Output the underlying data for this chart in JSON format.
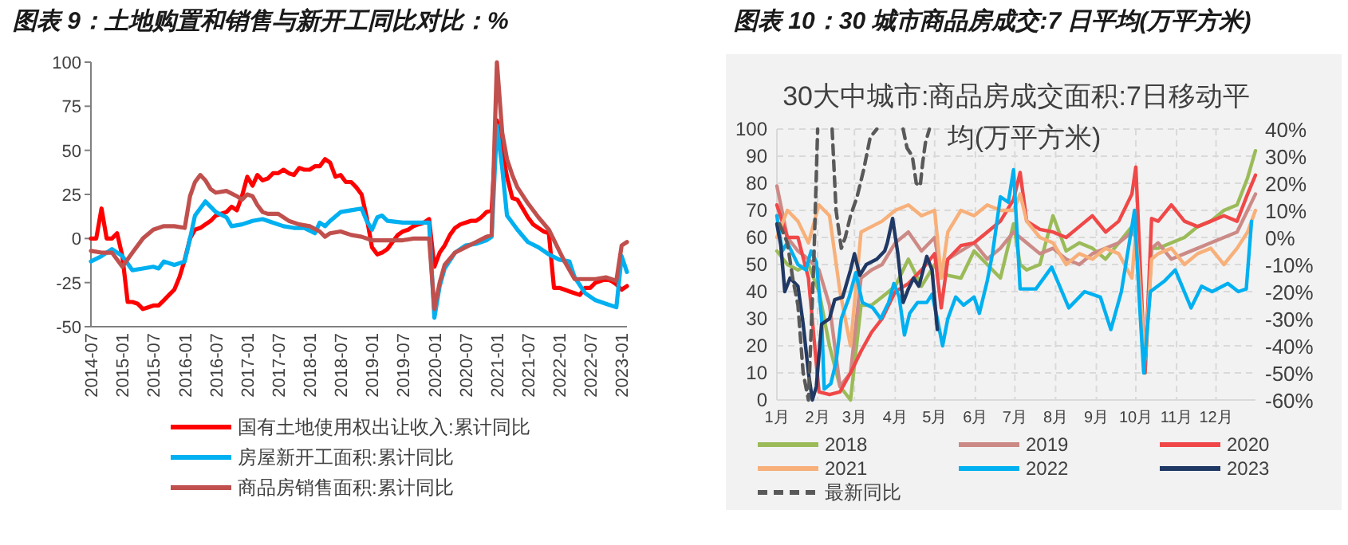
{
  "chart_data": [
    {
      "type": "line",
      "title": "图表 9：土地购置和销售与新开工同比对比：%",
      "xlim": [
        "2014-07",
        "2023-02"
      ],
      "xticks": [
        {
          "value": "2014-07",
          "label": "2014-07"
        },
        {
          "value": "2015-01",
          "label": "2015-01"
        },
        {
          "value": "2015-07",
          "label": "2015-07"
        },
        {
          "value": "2016-01",
          "label": "2016-01"
        },
        {
          "value": "2016-07",
          "label": "2016-07"
        },
        {
          "value": "2017-01",
          "label": "2017-01"
        },
        {
          "value": "2017-07",
          "label": "2017-07"
        },
        {
          "value": "2018-01",
          "label": "2018-01"
        },
        {
          "value": "2018-07",
          "label": "2018-07"
        },
        {
          "value": "2019-01",
          "label": "2019-01"
        },
        {
          "value": "2019-07",
          "label": "2019-07"
        },
        {
          "value": "2020-01",
          "label": "2020-01"
        },
        {
          "value": "2020-07",
          "label": "2020-07"
        },
        {
          "value": "2021-01",
          "label": "2021-01"
        },
        {
          "value": "2021-07",
          "label": "2021-07"
        },
        {
          "value": "2022-01",
          "label": "2022-01"
        },
        {
          "value": "2022-07",
          "label": "2022-07"
        },
        {
          "value": "2023-01",
          "label": "2023-01"
        }
      ],
      "ylim": [
        -50,
        100
      ],
      "yticks": [
        -50,
        -25,
        0,
        25,
        50,
        75,
        100
      ],
      "grid": false,
      "legend": "bottom",
      "series": [
        {
          "name": "国有土地使用权出让收入:累计同比",
          "color": "#ff0000",
          "x": [
            "2014-07",
            "2014-08",
            "2014-09",
            "2014-10",
            "2014-11",
            "2014-12",
            "2015-01",
            "2015-02",
            "2015-03",
            "2015-04",
            "2015-05",
            "2015-06",
            "2015-07",
            "2015-08",
            "2015-09",
            "2015-10",
            "2015-11",
            "2015-12",
            "2016-01",
            "2016-02",
            "2016-03",
            "2016-04",
            "2016-05",
            "2016-06",
            "2016-07",
            "2016-08",
            "2016-09",
            "2016-10",
            "2016-11",
            "2016-12",
            "2017-01",
            "2017-02",
            "2017-03",
            "2017-04",
            "2017-05",
            "2017-06",
            "2017-07",
            "2017-08",
            "2017-09",
            "2017-10",
            "2017-11",
            "2017-12",
            "2018-01",
            "2018-02",
            "2018-03",
            "2018-04",
            "2018-05",
            "2018-06",
            "2018-07",
            "2018-08",
            "2018-09",
            "2018-10",
            "2018-11",
            "2018-12",
            "2019-01",
            "2019-02",
            "2019-03",
            "2019-04",
            "2019-05",
            "2019-06",
            "2019-07",
            "2019-08",
            "2019-09",
            "2019-10",
            "2019-11",
            "2019-12",
            "2020-01",
            "2020-02",
            "2020-03",
            "2020-04",
            "2020-05",
            "2020-06",
            "2020-07",
            "2020-08",
            "2020-09",
            "2020-10",
            "2020-11",
            "2020-12",
            "2021-01",
            "2021-02",
            "2021-03",
            "2021-04",
            "2021-05",
            "2021-06",
            "2021-07",
            "2021-08",
            "2021-09",
            "2021-10",
            "2021-11",
            "2021-12",
            "2022-01",
            "2022-02",
            "2022-03",
            "2022-04",
            "2022-05",
            "2022-06",
            "2022-07",
            "2022-08",
            "2022-09",
            "2022-10",
            "2022-11",
            "2022-12",
            "2023-01",
            "2023-02"
          ],
          "values": [
            0,
            0,
            17,
            0,
            0,
            3,
            -10,
            -36,
            -36,
            -37,
            -40,
            -39,
            -38,
            -38,
            -35,
            -32,
            -29,
            -22,
            -12,
            0,
            5,
            6,
            8,
            10,
            13,
            14,
            15,
            18,
            16,
            24,
            35,
            30,
            36,
            33,
            34,
            37,
            37,
            39,
            37,
            36,
            40,
            39,
            39,
            41,
            41,
            45,
            43,
            35,
            36,
            32,
            32,
            29,
            25,
            12,
            -5,
            -9,
            -8,
            -6,
            -2,
            2,
            4,
            5,
            7,
            8,
            9,
            11,
            -16,
            -8,
            -4,
            2,
            6,
            8,
            9,
            10,
            10,
            12,
            15,
            16,
            67,
            50,
            35,
            23,
            22,
            17,
            12,
            8,
            6,
            4,
            3,
            -28,
            -28,
            -29,
            -30,
            -31,
            -32,
            -28,
            -28,
            -25,
            -24,
            -23,
            -24,
            -26,
            -29,
            -27
          ]
        },
        {
          "name": "房屋新开工面积:累计同比",
          "color": "#00b0f0",
          "x": [
            "2014-07",
            "2014-09",
            "2014-11",
            "2015-01",
            "2015-03",
            "2015-05",
            "2015-07",
            "2015-08",
            "2015-09",
            "2015-11",
            "2016-01",
            "2016-02",
            "2016-03",
            "2016-05",
            "2016-07",
            "2016-09",
            "2016-10",
            "2016-12",
            "2017-02",
            "2017-04",
            "2017-06",
            "2017-08",
            "2017-10",
            "2017-12",
            "2018-02",
            "2018-03",
            "2018-04",
            "2018-05",
            "2018-07",
            "2018-09",
            "2018-11",
            "2018-12",
            "2019-01",
            "2019-02",
            "2019-03",
            "2019-04",
            "2019-07",
            "2019-09",
            "2019-11",
            "2019-12",
            "2020-01",
            "2020-02",
            "2020-03",
            "2020-05",
            "2020-07",
            "2020-09",
            "2020-11",
            "2020-12",
            "2021-01",
            "2021-02",
            "2021-03",
            "2021-05",
            "2021-07",
            "2021-09",
            "2021-11",
            "2022-01",
            "2022-03",
            "2022-04",
            "2022-06",
            "2022-08",
            "2022-10",
            "2022-12",
            "2023-01",
            "2023-02"
          ],
          "values": [
            -13,
            -10,
            -6,
            -10,
            -18,
            -17,
            -16,
            -17,
            -13,
            -15,
            -13,
            0,
            13,
            21,
            15,
            12,
            7,
            8,
            10,
            11,
            9,
            7,
            6,
            6,
            3,
            9,
            7,
            10,
            15,
            16,
            17,
            10,
            5,
            12,
            13,
            10,
            9,
            9,
            9,
            9,
            -45,
            -27,
            -17,
            -8,
            -4,
            -3,
            -1,
            1,
            64,
            40,
            13,
            5,
            -2,
            -5,
            -9,
            -12,
            -13,
            -22,
            -31,
            -35,
            -37,
            -39,
            -10,
            -19
          ]
        },
        {
          "name": "商品房销售面积:累计同比",
          "color": "#c0504d",
          "x": [
            "2014-07",
            "2014-09",
            "2014-11",
            "2015-01",
            "2015-03",
            "2015-05",
            "2015-07",
            "2015-09",
            "2015-11",
            "2016-01",
            "2016-02",
            "2016-03",
            "2016-04",
            "2016-05",
            "2016-06",
            "2016-07",
            "2016-09",
            "2016-11",
            "2016-12",
            "2017-01",
            "2017-02",
            "2017-03",
            "2017-04",
            "2017-05",
            "2017-07",
            "2017-09",
            "2017-11",
            "2018-01",
            "2018-03",
            "2018-04",
            "2018-05",
            "2018-07",
            "2018-09",
            "2018-11",
            "2019-01",
            "2019-03",
            "2019-05",
            "2019-07",
            "2019-09",
            "2019-12",
            "2020-01",
            "2020-02",
            "2020-03",
            "2020-05",
            "2020-07",
            "2020-09",
            "2020-11",
            "2020-12",
            "2021-01",
            "2021-02",
            "2021-03",
            "2021-04",
            "2021-05",
            "2021-07",
            "2021-09",
            "2021-11",
            "2022-01",
            "2022-02",
            "2022-04",
            "2022-06",
            "2022-08",
            "2022-10",
            "2022-12",
            "2023-01",
            "2023-02"
          ],
          "values": [
            -7,
            -8,
            -8,
            -16,
            -8,
            0,
            5,
            7,
            7,
            6,
            24,
            32,
            36,
            33,
            28,
            26,
            27,
            24,
            22,
            25,
            24,
            19,
            15,
            14,
            14,
            10,
            8,
            7,
            4,
            1,
            3,
            4,
            2,
            1,
            -1,
            -1,
            -1,
            -1,
            0,
            0,
            -40,
            -25,
            -15,
            -8,
            -5,
            -2,
            1,
            2,
            100,
            60,
            45,
            36,
            29,
            20,
            12,
            5,
            -7,
            -13,
            -23,
            -23,
            -23,
            -22,
            -24,
            -4,
            -2
          ]
        }
      ]
    },
    {
      "type": "line",
      "title": "图表 10：30 城市商品房成交:7 日平均(万平方米)",
      "subtitle": "30大中城市:商品房成交面积:7日移动平均(万平方米)",
      "xlim": [
        "--01-01",
        "--12-31"
      ],
      "xticks": [
        {
          "value": "--01-01",
          "label": "1月"
        },
        {
          "value": "--02-01",
          "label": "2月"
        },
        {
          "value": "--03-01",
          "label": "3月"
        },
        {
          "value": "--04-01",
          "label": "4月"
        },
        {
          "value": "--05-01",
          "label": "5月"
        },
        {
          "value": "--06-01",
          "label": "6月"
        },
        {
          "value": "--07-01",
          "label": "7月"
        },
        {
          "value": "--08-01",
          "label": "8月"
        },
        {
          "value": "--09-01",
          "label": "9月"
        },
        {
          "value": "--10-01",
          "label": "10月"
        },
        {
          "value": "--11-01",
          "label": "11月"
        },
        {
          "value": "--12-01",
          "label": "12月"
        }
      ],
      "ylim": [
        0,
        100
      ],
      "yticks": [
        0,
        10,
        20,
        30,
        40,
        50,
        60,
        70,
        80,
        90,
        100
      ],
      "y2lim": [
        -60,
        40
      ],
      "y2ticks": [
        {
          "value": -60,
          "label": "-60%"
        },
        {
          "value": -50,
          "label": "-50%"
        },
        {
          "value": -40,
          "label": "-40%"
        },
        {
          "value": -30,
          "label": "-30%"
        },
        {
          "value": -20,
          "label": "-20%"
        },
        {
          "value": -10,
          "label": "-10%"
        },
        {
          "value": 0,
          "label": "0%"
        },
        {
          "value": 10,
          "label": "10%"
        },
        {
          "value": 20,
          "label": "20%"
        },
        {
          "value": 30,
          "label": "30%"
        },
        {
          "value": 40,
          "label": "40%"
        }
      ],
      "grid": true,
      "legend": "bottom",
      "x": [
        "--01-01",
        "--01-09",
        "--01-17",
        "--01-25",
        "--02-02",
        "--02-10",
        "--02-18",
        "--02-26",
        "--03-06",
        "--03-14",
        "--03-22",
        "--04-01",
        "--04-11",
        "--04-21",
        "--05-01",
        "--05-06",
        "--05-11",
        "--05-21",
        "--05-31",
        "--06-10",
        "--06-20",
        "--06-30",
        "--07-05",
        "--07-10",
        "--07-20",
        "--07-30",
        "--08-09",
        "--08-19",
        "--08-29",
        "--09-08",
        "--09-18",
        "--09-28",
        "--10-01",
        "--10-08",
        "--10-13",
        "--10-18",
        "--10-28",
        "--11-07",
        "--11-17",
        "--11-27",
        "--12-07",
        "--12-17",
        "--12-25",
        "--12-31"
      ],
      "series": [
        {
          "name": "2018",
          "color": "#9bbb59",
          "values": [
            55,
            50,
            48,
            50,
            40,
            20,
            5,
            0,
            35,
            35,
            38,
            42,
            52,
            42,
            50,
            48,
            46,
            45,
            55,
            50,
            45,
            65,
            50,
            48,
            50,
            68,
            55,
            58,
            56,
            52,
            58,
            64,
            60,
            10,
            56,
            56,
            58,
            60,
            64,
            66,
            70,
            72,
            82,
            92
          ]
        },
        {
          "name": "2019",
          "color": "#cc8a86",
          "values": [
            79,
            60,
            55,
            52,
            48,
            35,
            5,
            10,
            45,
            48,
            50,
            58,
            62,
            55,
            60,
            45,
            52,
            55,
            58,
            52,
            56,
            62,
            60,
            58,
            54,
            56,
            52,
            50,
            54,
            56,
            58,
            62,
            60,
            15,
            56,
            58,
            52,
            54,
            56,
            58,
            60,
            62,
            70,
            76
          ]
        },
        {
          "name": "2020",
          "color": "#f04848",
          "values": [
            72,
            60,
            60,
            45,
            3,
            2,
            3,
            10,
            18,
            25,
            30,
            40,
            43,
            48,
            54,
            34,
            52,
            57,
            58,
            62,
            66,
            74,
            84,
            66,
            63,
            62,
            60,
            64,
            68,
            62,
            66,
            76,
            86,
            10,
            67,
            66,
            72,
            66,
            64,
            66,
            68,
            66,
            76,
            83
          ]
        },
        {
          "name": "2021",
          "color": "#f8b07a",
          "values": [
            60,
            70,
            66,
            58,
            72,
            68,
            40,
            20,
            62,
            64,
            66,
            70,
            72,
            68,
            70,
            45,
            62,
            70,
            68,
            72,
            70,
            70,
            76,
            66,
            60,
            58,
            50,
            54,
            52,
            56,
            54,
            45,
            62,
            15,
            52,
            54,
            56,
            50,
            54,
            56,
            50,
            56,
            62,
            70
          ]
        },
        {
          "name": "2022",
          "color": "#00b0f0",
          "x": [
            "--01-01",
            "--01-05",
            "--01-09",
            "--01-13",
            "--01-17",
            "--01-23",
            "--01-27",
            "--01-31",
            "--02-04",
            "--02-06",
            "--02-11",
            "--02-15",
            "--02-19",
            "--02-25",
            "--03-02",
            "--03-07",
            "--03-15",
            "--03-21",
            "--03-27",
            "--03-31",
            "--04-04",
            "--04-08",
            "--04-12",
            "--04-18",
            "--04-25",
            "--04-29",
            "--05-03",
            "--05-07",
            "--05-11",
            "--05-17",
            "--05-23",
            "--05-31",
            "--06-04",
            "--06-10",
            "--06-14",
            "--06-20",
            "--06-26",
            "--06-30",
            "--07-05",
            "--07-17",
            "--07-29",
            "--08-11",
            "--08-23",
            "--09-04",
            "--09-12",
            "--09-20",
            "--09-30",
            "--10-04",
            "--10-07",
            "--10-12",
            "--10-23",
            "--10-31",
            "--11-12",
            "--11-20",
            "--11-28",
            "--12-10",
            "--12-18",
            "--12-24",
            "--12-28"
          ],
          "values": [
            68,
            55,
            58,
            54,
            50,
            48,
            55,
            51,
            30,
            4,
            6,
            14,
            30,
            38,
            47,
            36,
            34,
            30,
            36,
            43,
            38,
            24,
            32,
            36,
            36,
            39,
            30,
            20,
            30,
            38,
            35,
            38,
            32,
            44,
            54,
            75,
            73,
            85,
            41,
            41,
            49,
            34,
            40,
            38,
            26,
            40,
            70,
            34,
            10,
            40,
            44,
            48,
            34,
            42,
            40,
            43,
            40,
            41,
            66
          ]
        },
        {
          "name": "2023",
          "color": "#203864",
          "x": [
            "--01-01",
            "--01-04",
            "--01-07",
            "--01-11",
            "--01-17",
            "--01-21",
            "--01-25",
            "--01-28",
            "--01-31",
            "--02-04",
            "--02-10",
            "--02-14",
            "--02-20",
            "--02-26",
            "--03-01",
            "--03-05",
            "--03-10",
            "--03-18",
            "--03-24",
            "--03-26",
            "--03-30",
            "--04-03",
            "--04-07",
            "--04-11",
            "--04-15",
            "--04-19",
            "--04-25",
            "--04-29",
            "--05-03"
          ],
          "values": [
            65,
            57,
            40,
            45,
            42,
            28,
            10,
            0,
            5,
            28,
            30,
            37,
            38,
            48,
            54,
            46,
            50,
            52,
            55,
            58,
            67,
            54,
            36,
            41,
            45,
            42,
            53,
            48,
            26
          ]
        },
        {
          "name": "最新同比",
          "color": "#595959",
          "axis": "y2",
          "line_style": "dashed",
          "x": [
            "--01-03",
            "--01-09",
            "--01-13",
            "--01-17",
            "--01-21",
            "--01-25",
            "--01-29",
            "--02-01",
            "--02-06",
            "--02-12",
            "--02-15",
            "--02-19",
            "--02-22",
            "--02-26",
            "--03-03",
            "--03-08",
            "--03-13",
            "--03-18",
            "--03-28",
            "--04-07",
            "--04-10",
            "--04-14",
            "--04-17",
            "--04-20",
            "--04-22",
            "--04-24",
            "--04-27"
          ],
          "values": [
            5,
            -2,
            -15,
            -25,
            -50,
            -60,
            -10,
            40,
            null,
            40,
            10,
            -4,
            0,
            8,
            15,
            25,
            37,
            40,
            null,
            40,
            33,
            30,
            20,
            19,
            28,
            35,
            40
          ]
        }
      ]
    }
  ]
}
